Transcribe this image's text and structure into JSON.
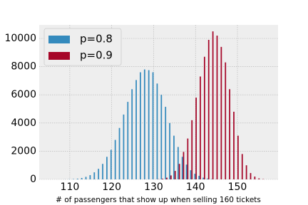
{
  "chart_data": {
    "type": "bar",
    "x_label": "# of passengers that show up when selling 160 tickets",
    "x": [
      109,
      110,
      111,
      112,
      113,
      114,
      115,
      116,
      117,
      118,
      119,
      120,
      121,
      122,
      123,
      124,
      125,
      126,
      127,
      128,
      129,
      130,
      131,
      132,
      133,
      134,
      135,
      136,
      137,
      138,
      139,
      140,
      141,
      142,
      143,
      144,
      145,
      146,
      147,
      148,
      149,
      150,
      151,
      152,
      153,
      154,
      155,
      156
    ],
    "series": [
      {
        "name": "p=0.8",
        "color": "#348ABD",
        "values": [
          5,
          12,
          25,
          50,
          100,
          180,
          300,
          500,
          750,
          1100,
          1600,
          2100,
          2800,
          3650,
          4600,
          5500,
          6400,
          7050,
          7600,
          7800,
          7750,
          7600,
          6800,
          6000,
          5150,
          4000,
          3100,
          2300,
          1600,
          1050,
          650,
          400,
          250,
          120,
          60,
          25,
          10,
          0,
          0,
          0,
          0,
          0,
          0,
          0,
          0,
          0,
          0,
          0
        ]
      },
      {
        "name": "p=0.9",
        "color": "#A60628",
        "values": [
          0,
          0,
          0,
          0,
          0,
          0,
          0,
          0,
          0,
          0,
          0,
          0,
          0,
          0,
          0,
          0,
          0,
          0,
          0,
          0,
          0,
          0,
          15,
          50,
          120,
          280,
          600,
          1100,
          1950,
          2900,
          4200,
          5800,
          7300,
          8700,
          9900,
          10500,
          10200,
          9400,
          8300,
          6400,
          4800,
          3100,
          1800,
          1000,
          450,
          200,
          70,
          20
        ]
      }
    ],
    "xlim": [
      102.7,
      159.7
    ],
    "xticks": [
      110,
      120,
      130,
      140,
      150
    ],
    "ylim": [
      0,
      10960
    ],
    "yticks": [
      0,
      2000,
      4000,
      6000,
      8000,
      10000
    ],
    "grid": true,
    "legend": "upper left"
  }
}
